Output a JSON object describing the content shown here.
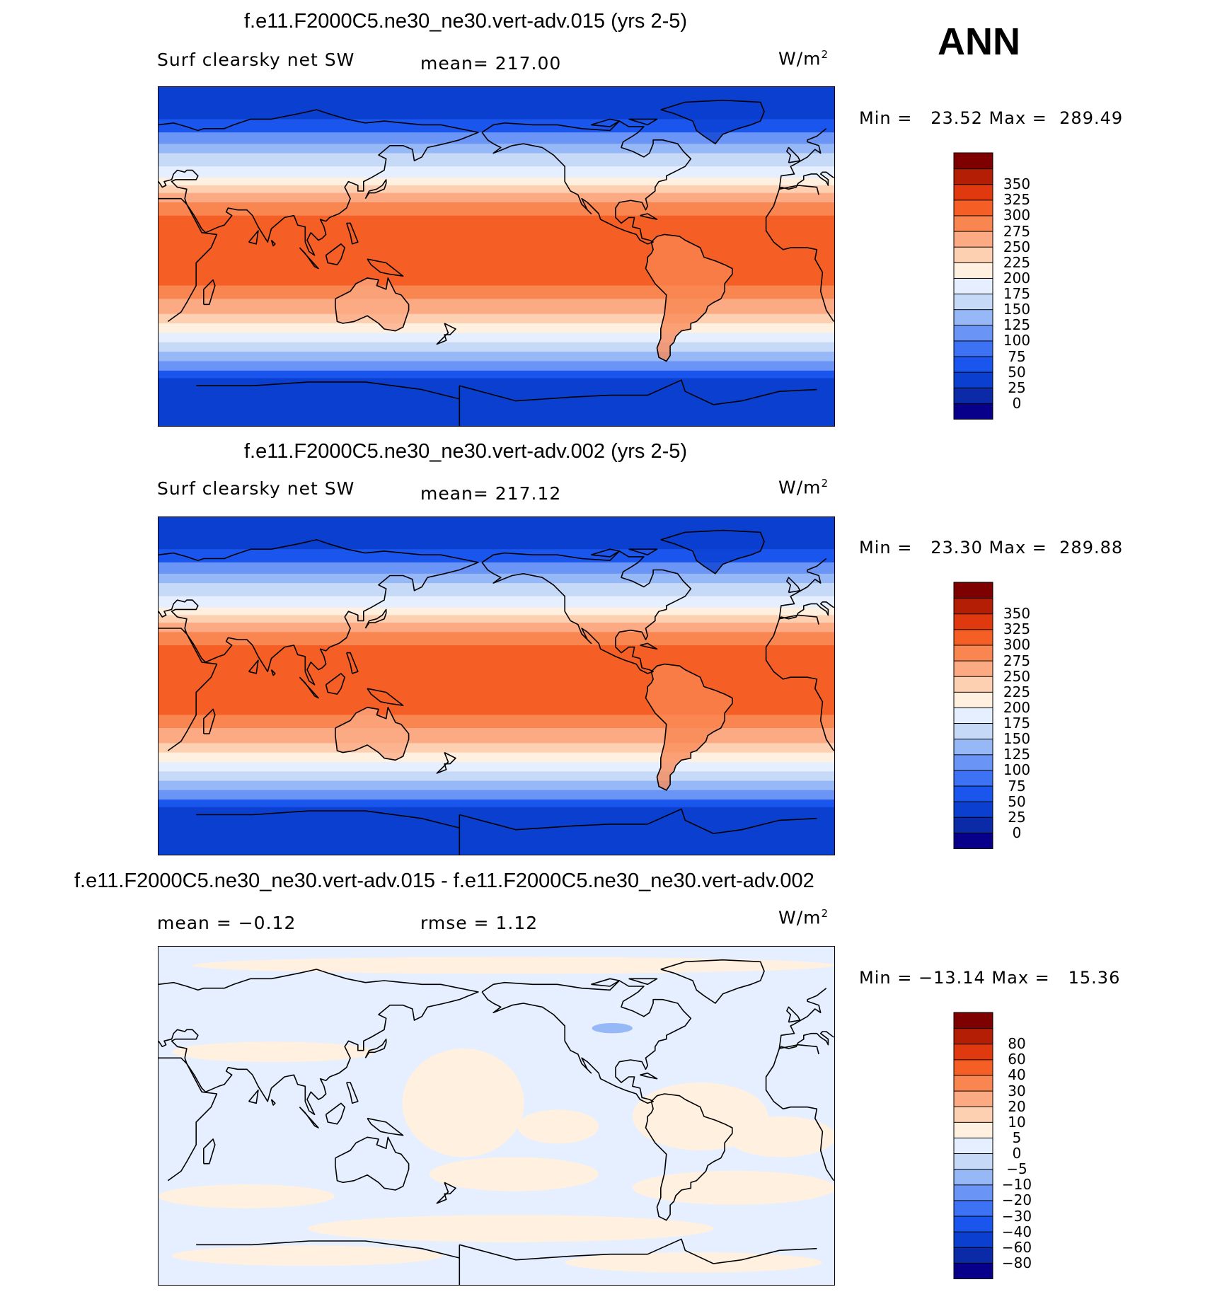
{
  "season_label": "ANN",
  "panels": [
    {
      "title": "f.e11.F2000C5.ne30_ne30.vert-adv.015 (yrs 2-5)",
      "left_label": "Surf clearsky net SW",
      "mid_label": "mean= 217.00",
      "units": "W/m",
      "units_sup": "2",
      "minmax": "Min =   23.52 Max =  289.49",
      "kind": "field",
      "colorbar": {
        "colors": [
          "#08008a",
          "#0a2aa8",
          "#0b3fd0",
          "#1a55ee",
          "#3d72f5",
          "#6a95f6",
          "#97b8f7",
          "#c6daf8",
          "#e5efff",
          "#fff0e0",
          "#fdd0b2",
          "#fbaa84",
          "#f98651",
          "#f55f26",
          "#e0380f",
          "#b41e04",
          "#7f0000"
        ],
        "ticks": [
          "0",
          "25",
          "50",
          "75",
          "100",
          "125",
          "150",
          "175",
          "200",
          "225",
          "250",
          "275",
          "300",
          "325",
          "350"
        ]
      }
    },
    {
      "title": "f.e11.F2000C5.ne30_ne30.vert-adv.002 (yrs 2-5)",
      "left_label": "Surf clearsky net SW",
      "mid_label": "mean= 217.12",
      "units": "W/m",
      "units_sup": "2",
      "minmax": "Min =   23.30 Max =  289.88",
      "kind": "field",
      "colorbar": {
        "colors": [
          "#08008a",
          "#0a2aa8",
          "#0b3fd0",
          "#1a55ee",
          "#3d72f5",
          "#6a95f6",
          "#97b8f7",
          "#c6daf8",
          "#e5efff",
          "#fff0e0",
          "#fdd0b2",
          "#fbaa84",
          "#f98651",
          "#f55f26",
          "#e0380f",
          "#b41e04",
          "#7f0000"
        ],
        "ticks": [
          "0",
          "25",
          "50",
          "75",
          "100",
          "125",
          "150",
          "175",
          "200",
          "225",
          "250",
          "275",
          "300",
          "325",
          "350"
        ]
      }
    },
    {
      "title": "f.e11.F2000C5.ne30_ne30.vert-adv.015 - f.e11.F2000C5.ne30_ne30.vert-adv.002",
      "left_label": "mean =   −0.12",
      "mid_label": "rmse =    1.12",
      "units": "W/m",
      "units_sup": "2",
      "minmax": "Min = −13.14 Max =   15.36",
      "kind": "diff",
      "colorbar": {
        "colors": [
          "#08008a",
          "#0a2aa8",
          "#0b3fd0",
          "#1a55ee",
          "#3d72f5",
          "#6a95f6",
          "#97b8f7",
          "#c6daf8",
          "#e5efff",
          "#fff0e0",
          "#fdd0b2",
          "#fbaa84",
          "#f98651",
          "#f55f26",
          "#e0380f",
          "#b41e04",
          "#7f0000"
        ],
        "ticks": [
          "−80",
          "−60",
          "−40",
          "−30",
          "−20",
          "−10",
          "−5",
          "0",
          "5",
          "10",
          "20",
          "30",
          "40",
          "60",
          "80"
        ]
      }
    }
  ]
}
